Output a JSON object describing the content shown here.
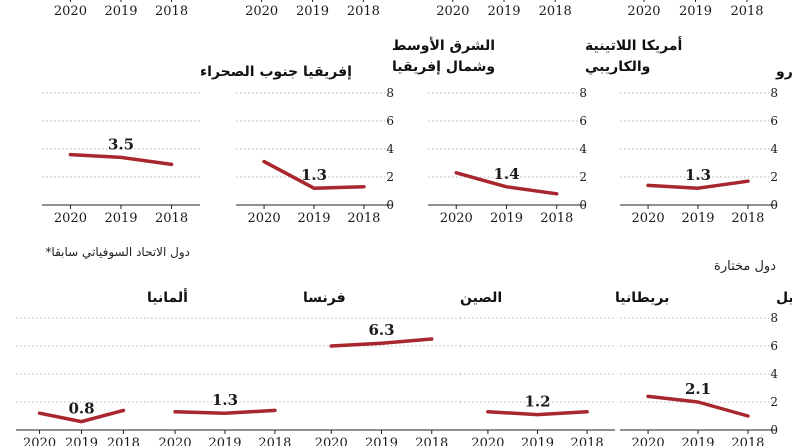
{
  "note": "*دول الاتحاد السوفياتي سابقا",
  "section_title": "دول مختارة",
  "x_ticks": [
    "2020",
    "2019",
    "2018"
  ],
  "y_ticks": [
    "0",
    "2",
    "4",
    "6",
    "8"
  ],
  "colors": {
    "line": "#a8262e",
    "grid": "#9a9a9a",
    "axis": "#222222"
  },
  "chart_data": [
    {
      "type": "line",
      "title": "",
      "categories": [
        "2020",
        "2019",
        "2018"
      ],
      "values": [
        null,
        null,
        null
      ],
      "ylim": [
        0,
        8
      ]
    },
    {
      "type": "line",
      "title": "",
      "categories": [
        "2020",
        "2019",
        "2018"
      ],
      "values": [
        null,
        null,
        null
      ],
      "ylim": [
        0,
        8
      ]
    },
    {
      "type": "line",
      "title": "",
      "categories": [
        "2020",
        "2019",
        "2018"
      ],
      "values": [
        null,
        null,
        null
      ],
      "ylim": [
        0,
        8
      ]
    },
    {
      "type": "line",
      "title": "",
      "categories": [
        "2020",
        "2019",
        "2018"
      ],
      "values": [
        null,
        null,
        null
      ],
      "ylim": [
        0,
        8
      ]
    },
    {
      "type": "line",
      "title": "منطقة اليورو",
      "categories": [
        "2020",
        "2019",
        "2018"
      ],
      "values": [
        1.4,
        1.2,
        1.7
      ],
      "label": "1.3",
      "ylim": [
        0,
        8
      ]
    },
    {
      "type": "line",
      "title": [
        "أمريكا اللاتينية",
        "والكاريبي"
      ],
      "categories": [
        "2020",
        "2019",
        "2018"
      ],
      "values": [
        2.3,
        1.3,
        0.8
      ],
      "label": "1.4",
      "ylim": [
        0,
        8
      ]
    },
    {
      "type": "line",
      "title": [
        "الشرق الأوسط",
        "وشمال إفريقيا"
      ],
      "categories": [
        "2020",
        "2019",
        "2018"
      ],
      "values": [
        3.1,
        1.2,
        1.3
      ],
      "label": "1.3",
      "ylim": [
        0,
        8
      ]
    },
    {
      "type": "line",
      "title": "إفريقيا جنوب الصحراء",
      "categories": [
        "2020",
        "2019",
        "2018"
      ],
      "values": [
        3.6,
        3.4,
        2.9
      ],
      "label": "3.5",
      "ylim": [
        0,
        8
      ]
    },
    {
      "type": "line",
      "title": "البرازيل",
      "categories": [
        "2020",
        "2019",
        "2018"
      ],
      "values": [
        2.4,
        2.0,
        1.0
      ],
      "label": "2.1",
      "ylim": [
        0,
        8
      ]
    },
    {
      "type": "line",
      "title": "بريطانيا",
      "categories": [
        "2020",
        "2019",
        "2018"
      ],
      "values": [
        1.3,
        1.1,
        1.3
      ],
      "label": "1.2",
      "ylim": [
        0,
        8
      ]
    },
    {
      "type": "line",
      "title": "الصين",
      "categories": [
        "2020",
        "2019",
        "2018"
      ],
      "values": [
        6.0,
        6.2,
        6.5
      ],
      "label": "6.3",
      "ylim": [
        0,
        8
      ]
    },
    {
      "type": "line",
      "title": "فرنسا",
      "categories": [
        "2020",
        "2019",
        "2018"
      ],
      "values": [
        1.3,
        1.2,
        1.4
      ],
      "label": "1.3",
      "ylim": [
        0,
        8
      ]
    },
    {
      "type": "line",
      "title": "ألمانيا",
      "categories": [
        "2020",
        "2019",
        "2018"
      ],
      "values": [
        1.2,
        0.6,
        1.4
      ],
      "label": "0.8",
      "ylim": [
        0,
        8
      ]
    }
  ]
}
